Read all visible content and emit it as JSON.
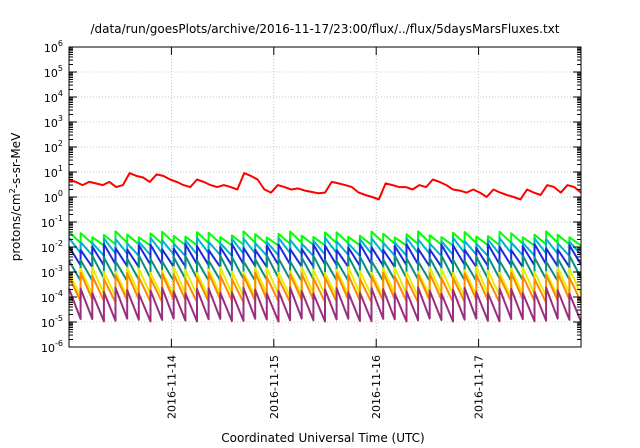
{
  "chart_data": {
    "type": "line",
    "title": "/data/run/goesPlots/archive/2016-11-17/23:00/flux/../flux/5daysMarsFluxes.txt",
    "xlabel": "Coordinated Universal Time (UTC)",
    "ylabel_parts": [
      "protons/cm",
      "2",
      "-s-sr-MeV"
    ],
    "y_scale": "log",
    "ylim": [
      1e-06,
      1000000.0
    ],
    "y_tick_exponents": [
      -6,
      -5,
      -4,
      -3,
      -2,
      -1,
      0,
      1,
      2,
      3,
      4,
      5,
      6
    ],
    "y_tick_base": "10",
    "xlim": [
      "2016-11-13T00:00",
      "2016-11-18T00:00"
    ],
    "x_ticks": [
      "2016-11-14",
      "2016-11-15",
      "2016-11-16",
      "2016-11-17"
    ],
    "grid": true,
    "series": [
      {
        "color": "#ff0000",
        "values": [
          5.0,
          4.0,
          3.0,
          4.0,
          3.5,
          3.0,
          4.0,
          2.5,
          3.0,
          9.0,
          7.0,
          6.0,
          4.0,
          8.0,
          7.0,
          5.0,
          4.0,
          3.0,
          2.5,
          5.0,
          4.0,
          3.0,
          2.5,
          3.0,
          2.5,
          2.0,
          9.0,
          7.0,
          5.0,
          2.0,
          1.5,
          3.0,
          2.5,
          2.0,
          2.2,
          1.8,
          1.6,
          1.4,
          1.5,
          4.0,
          3.5,
          3.0,
          2.5,
          1.5,
          1.2,
          1.0,
          0.8,
          3.5,
          3.0,
          2.5,
          2.5,
          2.0,
          3.0,
          2.5,
          5.0,
          4.0,
          3.0,
          2.0,
          1.8,
          1.5,
          2.0,
          1.5,
          1.0,
          2.0,
          1.5,
          1.2,
          1.0,
          0.8,
          2.0,
          1.5,
          1.2,
          3.0,
          2.5,
          1.5,
          3.0,
          2.5,
          1.5
        ]
      },
      {
        "color": "#00ff00",
        "profile": "sawtooth",
        "peak": 0.032,
        "trough": 0.013
      },
      {
        "color": "#00b3cc",
        "profile": "sawtooth",
        "peak": 0.018,
        "trough": 0.005
      },
      {
        "color": "#1a2bd8",
        "profile": "sawtooth",
        "peak": 0.01,
        "trough": 0.0018
      },
      {
        "color": "#0a8f7a",
        "profile": "sawtooth",
        "peak": 0.0035,
        "trough": 0.0005
      },
      {
        "color": "#e8ee00",
        "profile": "sawtooth",
        "peak": 0.0012,
        "trough": 0.00012
      },
      {
        "color": "#ff8800",
        "profile": "sawtooth",
        "peak": 0.0007,
        "trough": 7e-05
      },
      {
        "color": "#9b2d7f",
        "profile": "sawtooth",
        "peak": 0.00018,
        "trough": 1.2e-05
      }
    ]
  }
}
